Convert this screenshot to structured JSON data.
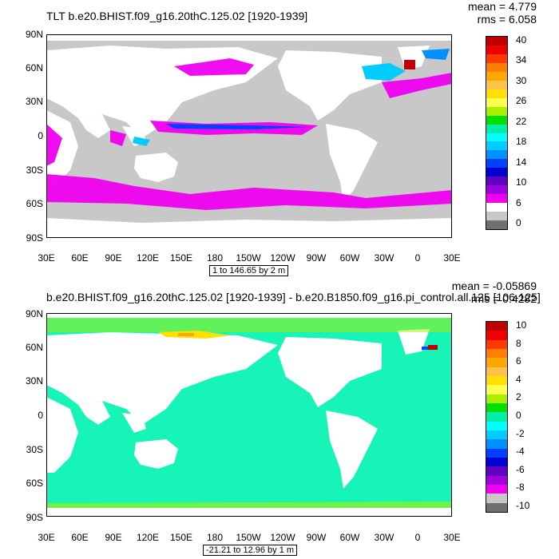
{
  "panels": [
    {
      "title": "TLT b.e20.BHIST.f09_g16.20thC.125.02 [1920-1939]",
      "stats": {
        "mean": "mean = 4.779",
        "rms": "rms = 6.058"
      },
      "range_label": "1 to 146.65 by 2 m",
      "lat_labels": [
        "90N",
        "60N",
        "30N",
        "0",
        "30S",
        "60S",
        "90S"
      ],
      "lon_labels": [
        "30E",
        "60E",
        "90E",
        "120E",
        "150E",
        "180",
        "150W",
        "120W",
        "90W",
        "60W",
        "30W",
        "0",
        "30E"
      ],
      "colorbar": {
        "labels": [
          "40",
          "34",
          "30",
          "26",
          "22",
          "18",
          "14",
          "10",
          "6",
          "0"
        ],
        "colors": [
          "#c00000",
          "#f00000",
          "#ff3a00",
          "#ff7f00",
          "#ffa600",
          "#ffc34a",
          "#ffe000",
          "#ffff50",
          "#aaee00",
          "#00e000",
          "#00eeaa",
          "#00ffff",
          "#00ccff",
          "#0090ff",
          "#0040ff",
          "#0000d0",
          "#6000c0",
          "#a000e0",
          "#f000f0",
          "#ffffff",
          "#c8c8c8",
          "#707070"
        ]
      },
      "map_data": {
        "field": "TLT",
        "dominant_ocean_value_band": "gray (near 0)",
        "notable_features": [
          "magenta band along equatorial Pacific",
          "cyan/blue high values in North Atlantic",
          "magenta Southern Ocean band"
        ]
      }
    },
    {
      "title": "b.e20.BHIST.f09_g16.20thC.125.02 [1920-1939] - b.e20.B1850.f09_g16.pi_control.all.125 [106-125]",
      "stats": {
        "mean": "mean = -0.05869",
        "rms": "rms = 0.4282"
      },
      "range_label": "-21.21 to 12.96 by 1 m",
      "lat_labels": [
        "90N",
        "60N",
        "30N",
        "0",
        "30S",
        "60S",
        "90S"
      ],
      "lon_labels": [
        "30E",
        "60E",
        "90E",
        "120E",
        "150E",
        "180",
        "150W",
        "120W",
        "90W",
        "60W",
        "30W",
        "0",
        "30E"
      ],
      "colorbar": {
        "labels": [
          "10",
          "8",
          "6",
          "4",
          "2",
          "0",
          "-2",
          "-4",
          "-6",
          "-8",
          "-10"
        ],
        "colors": [
          "#c00000",
          "#f00000",
          "#ff3a00",
          "#ff7f00",
          "#ffa600",
          "#ffc34a",
          "#ffe000",
          "#ffff50",
          "#aaee00",
          "#00e000",
          "#00eeaa",
          "#00ffff",
          "#00ccff",
          "#0090ff",
          "#0040ff",
          "#0000d0",
          "#6000c0",
          "#a000e0",
          "#f000f0",
          "#c8c8c8",
          "#707070"
        ]
      },
      "map_data": {
        "field": "TLT difference",
        "dominant_ocean_value_band": "cyan-green (near 0)",
        "notable_features": [
          "yellow/orange streak north of Siberia",
          "red spot near Greenland/Labrador"
        ]
      }
    }
  ]
}
